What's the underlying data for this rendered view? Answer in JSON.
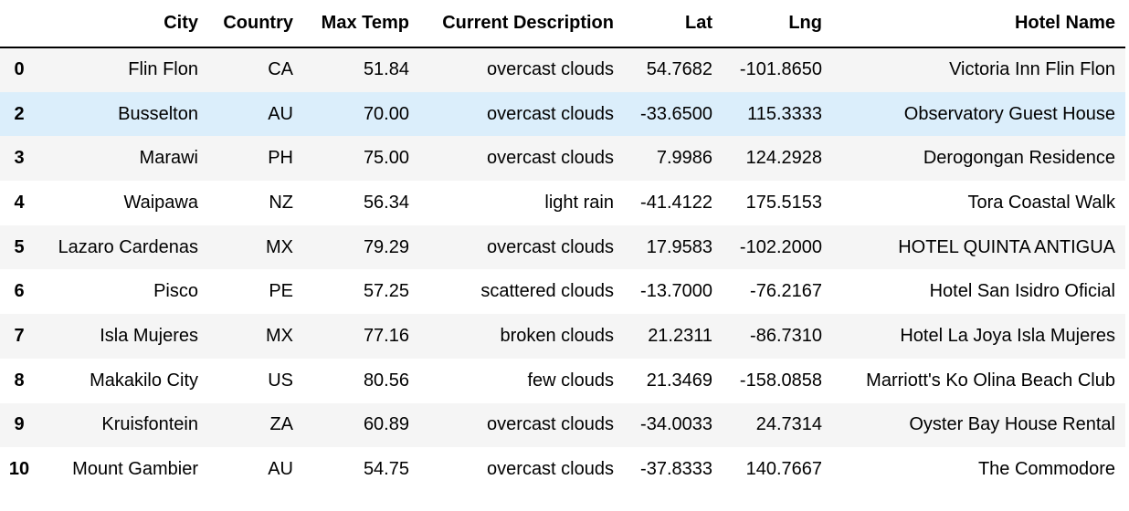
{
  "columns": {
    "index": "",
    "city": "City",
    "country": "Country",
    "max_temp": "Max Temp",
    "description": "Current Description",
    "lat": "Lat",
    "lng": "Lng",
    "hotel": "Hotel Name"
  },
  "rows": [
    {
      "index": "0",
      "city": "Flin Flon",
      "country": "CA",
      "max_temp": "51.84",
      "description": "overcast clouds",
      "lat": "54.7682",
      "lng": "-101.8650",
      "hotel": "Victoria Inn Flin Flon"
    },
    {
      "index": "2",
      "city": "Busselton",
      "country": "AU",
      "max_temp": "70.00",
      "description": "overcast clouds",
      "lat": "-33.6500",
      "lng": "115.3333",
      "hotel": "Observatory Guest House"
    },
    {
      "index": "3",
      "city": "Marawi",
      "country": "PH",
      "max_temp": "75.00",
      "description": "overcast clouds",
      "lat": "7.9986",
      "lng": "124.2928",
      "hotel": "Derogongan Residence"
    },
    {
      "index": "4",
      "city": "Waipawa",
      "country": "NZ",
      "max_temp": "56.34",
      "description": "light rain",
      "lat": "-41.4122",
      "lng": "175.5153",
      "hotel": "Tora Coastal Walk"
    },
    {
      "index": "5",
      "city": "Lazaro Cardenas",
      "country": "MX",
      "max_temp": "79.29",
      "description": "overcast clouds",
      "lat": "17.9583",
      "lng": "-102.2000",
      "hotel": "HOTEL QUINTA ANTIGUA"
    },
    {
      "index": "6",
      "city": "Pisco",
      "country": "PE",
      "max_temp": "57.25",
      "description": "scattered clouds",
      "lat": "-13.7000",
      "lng": "-76.2167",
      "hotel": "Hotel San Isidro Oficial"
    },
    {
      "index": "7",
      "city": "Isla Mujeres",
      "country": "MX",
      "max_temp": "77.16",
      "description": "broken clouds",
      "lat": "21.2311",
      "lng": "-86.7310",
      "hotel": "Hotel La Joya Isla Mujeres"
    },
    {
      "index": "8",
      "city": "Makakilo City",
      "country": "US",
      "max_temp": "80.56",
      "description": "few clouds",
      "lat": "21.3469",
      "lng": "-158.0858",
      "hotel": "Marriott's Ko Olina Beach Club"
    },
    {
      "index": "9",
      "city": "Kruisfontein",
      "country": "ZA",
      "max_temp": "60.89",
      "description": "overcast clouds",
      "lat": "-34.0033",
      "lng": "24.7314",
      "hotel": "Oyster Bay House Rental"
    },
    {
      "index": "10",
      "city": "Mount Gambier",
      "country": "AU",
      "max_temp": "54.75",
      "description": "overcast clouds",
      "lat": "-37.8333",
      "lng": "140.7667",
      "hotel": "The Commodore"
    }
  ],
  "highlighted_row_index": "2",
  "colors": {
    "stripe": "#f5f5f5",
    "highlight": "#dbeefb",
    "header_rule": "#000000"
  }
}
